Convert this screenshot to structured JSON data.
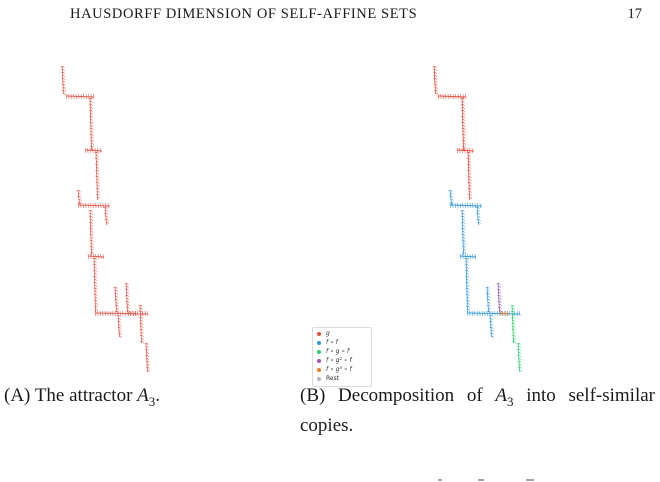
{
  "header": {
    "title": "HAUSDORFF DIMENSION OF SELF-AFFINE SETS",
    "page_number": "17"
  },
  "figures": {
    "a": {
      "caption_label": "(A)",
      "caption_text": "The attractor ",
      "caption_math": "A",
      "caption_sub": "3",
      "caption_end": "."
    },
    "b": {
      "caption_label": "(B)",
      "caption_text": "Decomposition of ",
      "caption_math": "A",
      "caption_sub": "3",
      "caption_end": " into self-similar copies."
    }
  },
  "legend": {
    "items": [
      {
        "label": "g",
        "color": "#e74c3c"
      },
      {
        "label": "f ∘ f",
        "color": "#3498db"
      },
      {
        "label": "f ∘ g ∘ f",
        "color": "#2ecc71"
      },
      {
        "label": "f ∘ g² ∘ f",
        "color": "#9b59b6"
      },
      {
        "label": "f ∘ g³ ∘ f",
        "color": "#e67e22"
      },
      {
        "label": "Rest",
        "color": "#b0b8c8"
      }
    ]
  },
  "colors": {
    "attractor": "#e05a4e",
    "red": "#e74c3c",
    "blue": "#3498db",
    "green": "#2ecc71",
    "purple": "#9b59b6",
    "orange": "#e67e22"
  }
}
